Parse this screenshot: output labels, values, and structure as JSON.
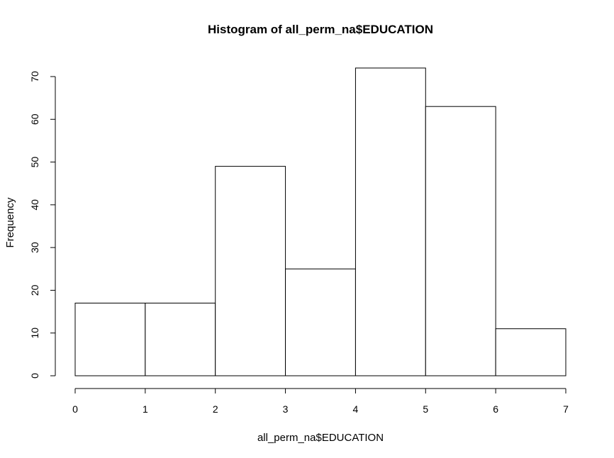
{
  "chart_data": {
    "type": "bar",
    "title": "Histogram of all_perm_na$EDUCATION",
    "xlabel": "all_perm_na$EDUCATION",
    "ylabel": "Frequency",
    "bins": [
      {
        "x0": 0,
        "x1": 1,
        "count": 17
      },
      {
        "x0": 1,
        "x1": 2,
        "count": 17
      },
      {
        "x0": 2,
        "x1": 3,
        "count": 49
      },
      {
        "x0": 3,
        "x1": 4,
        "count": 25
      },
      {
        "x0": 4,
        "x1": 5,
        "count": 72
      },
      {
        "x0": 5,
        "x1": 6,
        "count": 63
      },
      {
        "x0": 6,
        "x1": 7,
        "count": 11
      }
    ],
    "xlim": [
      0,
      7
    ],
    "ylim": [
      0,
      72
    ],
    "x_ticks": [
      0,
      1,
      2,
      3,
      4,
      5,
      6,
      7
    ],
    "y_ticks": [
      0,
      10,
      20,
      30,
      40,
      50,
      60,
      70
    ],
    "grid": false,
    "legend": "none"
  }
}
